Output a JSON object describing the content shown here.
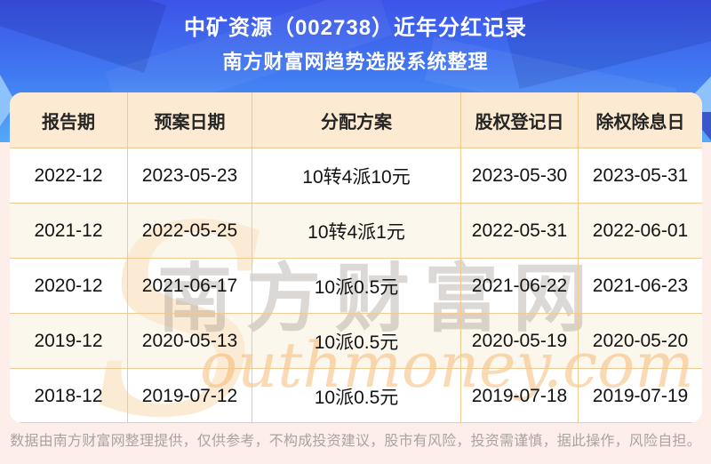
{
  "page": {
    "title_line1": "中矿资源（002738）近年分红记录",
    "title_line2": "南方财富网趋势选股系统整理",
    "disclaimer": "数据由南方财富网整理提供，仅供参考，不构成投资建议，股市有风险，投资需谨慎，据此操作，风险自担。"
  },
  "watermark": {
    "swoosh_letter": "S",
    "cjk_text": "南方财富网",
    "script_text": "outhmoney.com"
  },
  "colors": {
    "band_blue_top": "#3d53e8",
    "band_blue_mid": "#4079f1",
    "band_blue_bottom": "#55a9f8",
    "header_bg": "#fcebd2",
    "row_alt_bg": "#fbf7ec",
    "table_border": "#f3c992",
    "page_pink_bg": "#fdeee9",
    "watermark_orange": "#f4a84e",
    "disclaimer_text": "#a9a49e",
    "title_text": "#ffffff",
    "cell_text": "#131313"
  },
  "chart_data": {
    "type": "table",
    "title": "中矿资源（002738）近年分红记录",
    "subtitle": "南方财富网趋势选股系统整理",
    "columns": [
      "报告期",
      "预案日期",
      "分配方案",
      "股权登记日",
      "除权除息日"
    ],
    "rows": [
      [
        "2022-12",
        "2023-05-23",
        "10转4派10元",
        "2023-05-30",
        "2023-05-31"
      ],
      [
        "2021-12",
        "2022-05-25",
        "10转4派1元",
        "2022-05-31",
        "2022-06-01"
      ],
      [
        "2020-12",
        "2021-06-17",
        "10派0.5元",
        "2021-06-22",
        "2021-06-23"
      ],
      [
        "2019-12",
        "2020-05-13",
        "10派0.5元",
        "2020-05-19",
        "2020-05-20"
      ],
      [
        "2018-12",
        "2019-07-12",
        "10派0.5元",
        "2019-07-18",
        "2019-07-19"
      ]
    ]
  }
}
